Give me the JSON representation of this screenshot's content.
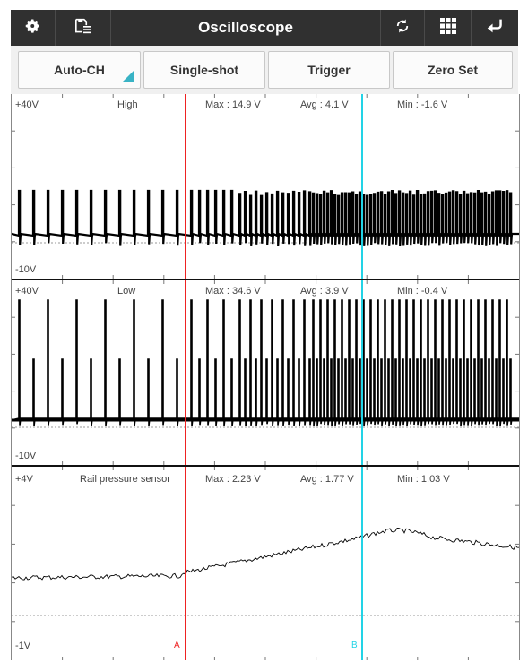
{
  "toolbar": {
    "title": "Oscilloscope",
    "icons": [
      "gear-icon",
      "save-list-icon",
      "refresh-icon",
      "grid-icon",
      "back-icon"
    ]
  },
  "buttons": [
    {
      "name": "auto-ch-button",
      "label": "Auto-CH"
    },
    {
      "name": "single-shot-button",
      "label": "Single-shot"
    },
    {
      "name": "trigger-button",
      "label": "Trigger"
    },
    {
      "name": "zero-set-button",
      "label": "Zero Set"
    }
  ],
  "channels": [
    {
      "top_label": "+40V",
      "bottom_label": "-10V",
      "name": "High",
      "max": "Max : 14.9 V",
      "avg": "Avg : 4.1 V",
      "min": "Min : -1.6 V"
    },
    {
      "top_label": "+40V",
      "bottom_label": "-10V",
      "name": "Low",
      "max": "Max : 34.6 V",
      "avg": "Avg : 3.9 V",
      "min": "Min : -0.4 V"
    },
    {
      "top_label": "+4V",
      "bottom_label": "-1V",
      "name": "Rail pressure sensor",
      "max": "Max : 2.23 V",
      "avg": "Avg : 1.77 V",
      "min": "Min : 1.03 V"
    }
  ],
  "cursors": {
    "a": {
      "label": "A",
      "color": "#ee2222"
    },
    "b": {
      "label": "B",
      "color": "#22d3e6"
    }
  },
  "colors": {
    "toolbar_bg": "#303030",
    "accent": "#39b3c5",
    "trace": "#000000"
  }
}
